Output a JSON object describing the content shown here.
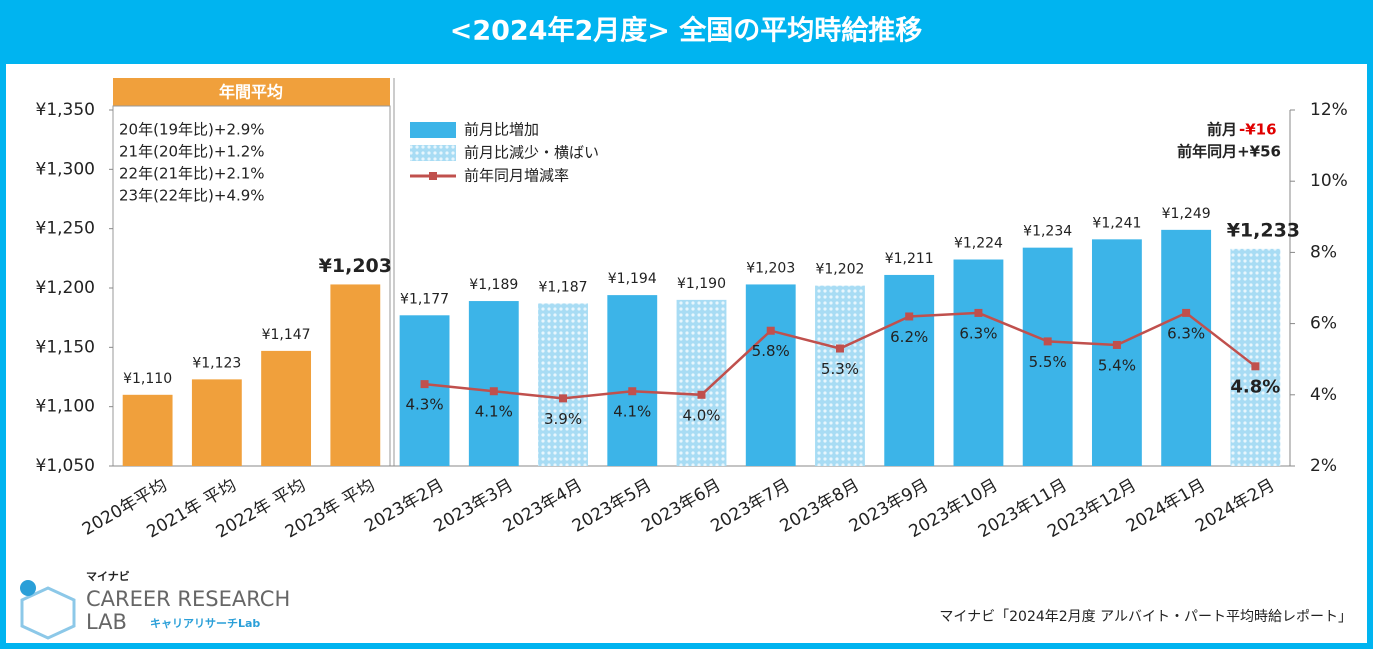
{
  "chart_data": {
    "type": "bar",
    "title": "<2024年2月度> 全国の平均時給推移",
    "categories": [
      "2020年平均",
      "2021年 平均",
      "2022年 平均",
      "2023年 平均",
      "2023年2月",
      "2023年3月",
      "2023年4月",
      "2023年5月",
      "2023年6月",
      "2023年7月",
      "2023年8月",
      "2023年9月",
      "2023年10月",
      "2023年11月",
      "2023年12月",
      "2024年1月",
      "2024年2月"
    ],
    "series": [
      {
        "name": "年間平均",
        "color": "#f0a03c",
        "values": [
          1110,
          1123,
          1147,
          1203,
          null,
          null,
          null,
          null,
          null,
          null,
          null,
          null,
          null,
          null,
          null,
          null,
          null
        ],
        "value_labels": [
          "¥1,110",
          "¥1,123",
          "¥1,147",
          "¥1,203",
          null,
          null,
          null,
          null,
          null,
          null,
          null,
          null,
          null,
          null,
          null,
          null,
          null
        ]
      },
      {
        "name": "前月比増加",
        "color": "#3cb4e8",
        "values": [
          null,
          null,
          null,
          null,
          1177,
          1189,
          null,
          1194,
          null,
          1203,
          null,
          1211,
          1224,
          1234,
          1241,
          1249,
          null
        ],
        "value_labels": [
          null,
          null,
          null,
          null,
          "¥1,177",
          "¥1,189",
          null,
          "¥1,194",
          null,
          "¥1,203",
          null,
          "¥1,211",
          "¥1,224",
          "¥1,234",
          "¥1,241",
          "¥1,249",
          null
        ]
      },
      {
        "name": "前月比減少・横ばい",
        "color": "#a8dcf4",
        "values": [
          null,
          null,
          null,
          null,
          null,
          null,
          1187,
          null,
          1190,
          null,
          1202,
          null,
          null,
          null,
          null,
          null,
          1233
        ],
        "value_labels": [
          null,
          null,
          null,
          null,
          null,
          null,
          "¥1,187",
          null,
          "¥1,190",
          null,
          "¥1,202",
          null,
          null,
          null,
          null,
          null,
          "¥1,233"
        ]
      },
      {
        "name": "前年同月増減率",
        "color": "#c0504d",
        "type": "line",
        "axis": "y2",
        "values": [
          null,
          null,
          null,
          null,
          4.3,
          4.1,
          3.9,
          4.1,
          4.0,
          5.8,
          5.3,
          6.2,
          6.3,
          5.5,
          5.4,
          6.3,
          4.8
        ],
        "value_labels": [
          null,
          null,
          null,
          null,
          "4.3%",
          "4.1%",
          "3.9%",
          "4.1%",
          "4.0%",
          "5.8%",
          "5.3%",
          "6.2%",
          "6.3%",
          "5.5%",
          "5.4%",
          "6.3%",
          "4.8%"
        ]
      }
    ],
    "ylim": [
      1050,
      1350
    ],
    "yticks": [
      {
        "value": 1050,
        "label": "¥1,050"
      },
      {
        "value": 1100,
        "label": "¥1,100"
      },
      {
        "value": 1150,
        "label": "¥1,150"
      },
      {
        "value": 1200,
        "label": "¥1,200"
      },
      {
        "value": 1250,
        "label": "¥1,250"
      },
      {
        "value": 1300,
        "label": "¥1,300"
      },
      {
        "value": 1350,
        "label": "¥1,350"
      }
    ],
    "y2lim": [
      2,
      12
    ],
    "y2ticks": [
      {
        "value": 2,
        "label": "2%"
      },
      {
        "value": 4,
        "label": "4%"
      },
      {
        "value": 6,
        "label": "6%"
      },
      {
        "value": 8,
        "label": "8%"
      },
      {
        "value": 10,
        "label": "10%"
      },
      {
        "value": 12,
        "label": "12%"
      }
    ],
    "annual_notes": [
      "20年(19年比)+2.9%",
      "21年(20年比)+1.2%",
      "22年(21年比)+2.1%",
      "23年(22年比)+4.9%"
    ],
    "change_notes": {
      "prev_month_label": "前月",
      "prev_month_value": "-¥16",
      "prev_year": "前年同月+¥56"
    },
    "source": "マイナビ「2024年2月度 アルバイト・パート平均時給レポート」",
    "logo": {
      "brand": "マイナビ",
      "line1": "CAREER RESEARCH",
      "line2": "LAB",
      "sub": "キャリアリサーチLab"
    }
  }
}
